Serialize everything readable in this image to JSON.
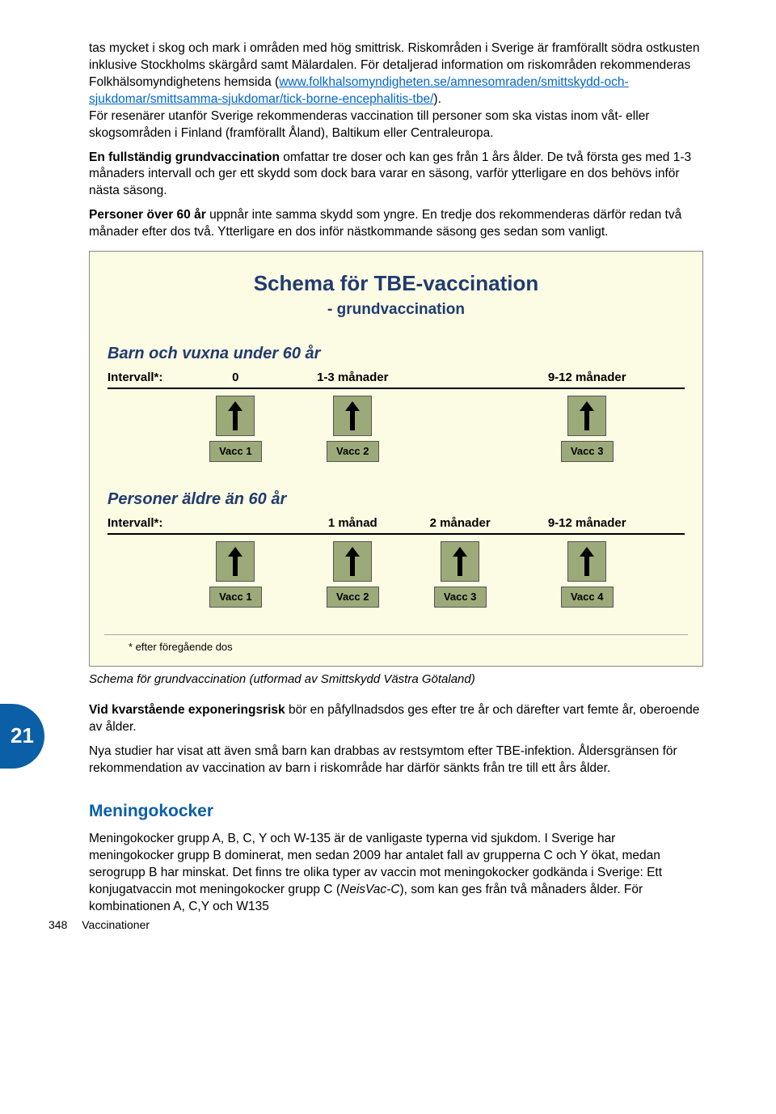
{
  "page_tab": "21",
  "footer": {
    "page_number": "348",
    "section": "Vaccinationer"
  },
  "paras": {
    "p1a": "tas mycket i skog och mark i områden med hög smittrisk. Riskområden i Sverige är framförallt södra ostkusten inklusive Stockholms skärgård samt Mälardalen. För detaljerad information om riskområden rekommenderas Folkhälsomyndighetens hemsida (",
    "link1": "www.folkhalsomyndigheten.se/amnesomraden/smittskydd-och-sjukdomar/smittsamma-sjukdomar/tick-borne-encephalitis-tbe/",
    "p1b": ").",
    "p1c": "För resenärer utanför Sverige rekommenderas vaccination till personer som ska vistas inom våt- eller skogsområden i Finland (framförallt Åland), Baltikum eller Centraleuropa.",
    "p2a": "En fullständig grundvaccination",
    "p2b": " omfattar tre doser och kan ges från 1 års ålder. De två första ges med 1-3 månaders intervall och ger ett skydd som dock bara varar en säsong, varför ytterligare en dos behövs inför nästa säsong.",
    "p3a": "Personer över 60 år",
    "p3b": " uppnår inte samma skydd som yngre. En tredje dos rekommenderas därför redan två månader efter dos två. Ytterligare en dos inför nästkommande säsong ges sedan som vanligt.",
    "caption": "Schema för grundvaccination (utformad av Smittskydd Västra Götaland)",
    "p4a": "Vid kvarstående exponeringsrisk",
    "p4b": " bör en påfyllnadsdos ges efter tre år och därefter vart femte år, oberoende av ålder.",
    "p5": "Nya studier har visat att även små barn kan drabbas av restsymtom efter TBE-infektion. Åldersgränsen för rekommendation av vaccination av barn i riskområde har därför sänkts från tre till ett års ålder.",
    "h2": "Meningokocker",
    "p6a": "Meningokocker grupp A, B, C, Y och W-135 är de vanligaste typerna vid sjukdom. I Sverige har meningokocker grupp B dominerat, men sedan 2009 har antalet fall av grupperna C och Y ökat, medan serogrupp B har minskat. Det finns tre olika typer av vaccin mot meningokocker godkända i Sverige: Ett konjugatvaccin mot meningokocker grupp C (",
    "p6i": "NeisVac-C",
    "p6b": "), som kan ges från två månaders ålder. För kombinationen A, C,Y och W135"
  },
  "schema": {
    "title": "Schema för TBE-vaccination",
    "subtitle": "- grundvaccination",
    "section1": {
      "heading": "Barn och vuxna under 60 år",
      "interval_label": "Intervall*:",
      "intervals": [
        "0",
        "1-3 månader",
        "9-12 månader"
      ],
      "interval_pos_pct": [
        8,
        32,
        80
      ],
      "vaccs": [
        "Vacc 1",
        "Vacc 2",
        "Vacc 3"
      ],
      "vacc_pos_pct": [
        8,
        32,
        80
      ]
    },
    "section2": {
      "heading": "Personer äldre än 60 år",
      "interval_label": "Intervall*:",
      "intervals": [
        "1 månad",
        "2 månader",
        "9-12 månader"
      ],
      "interval_pos_pct": [
        32,
        54,
        80
      ],
      "vaccs": [
        "Vacc 1",
        "Vacc 2",
        "Vacc 3",
        "Vacc 4"
      ],
      "vacc_pos_pct": [
        8,
        32,
        54,
        80
      ]
    },
    "footnote": "* efter föregående dos",
    "colors": {
      "box_bg": "#fcfbe3",
      "vacc_bg": "#9caa7a",
      "title_color": "#203b70"
    }
  }
}
